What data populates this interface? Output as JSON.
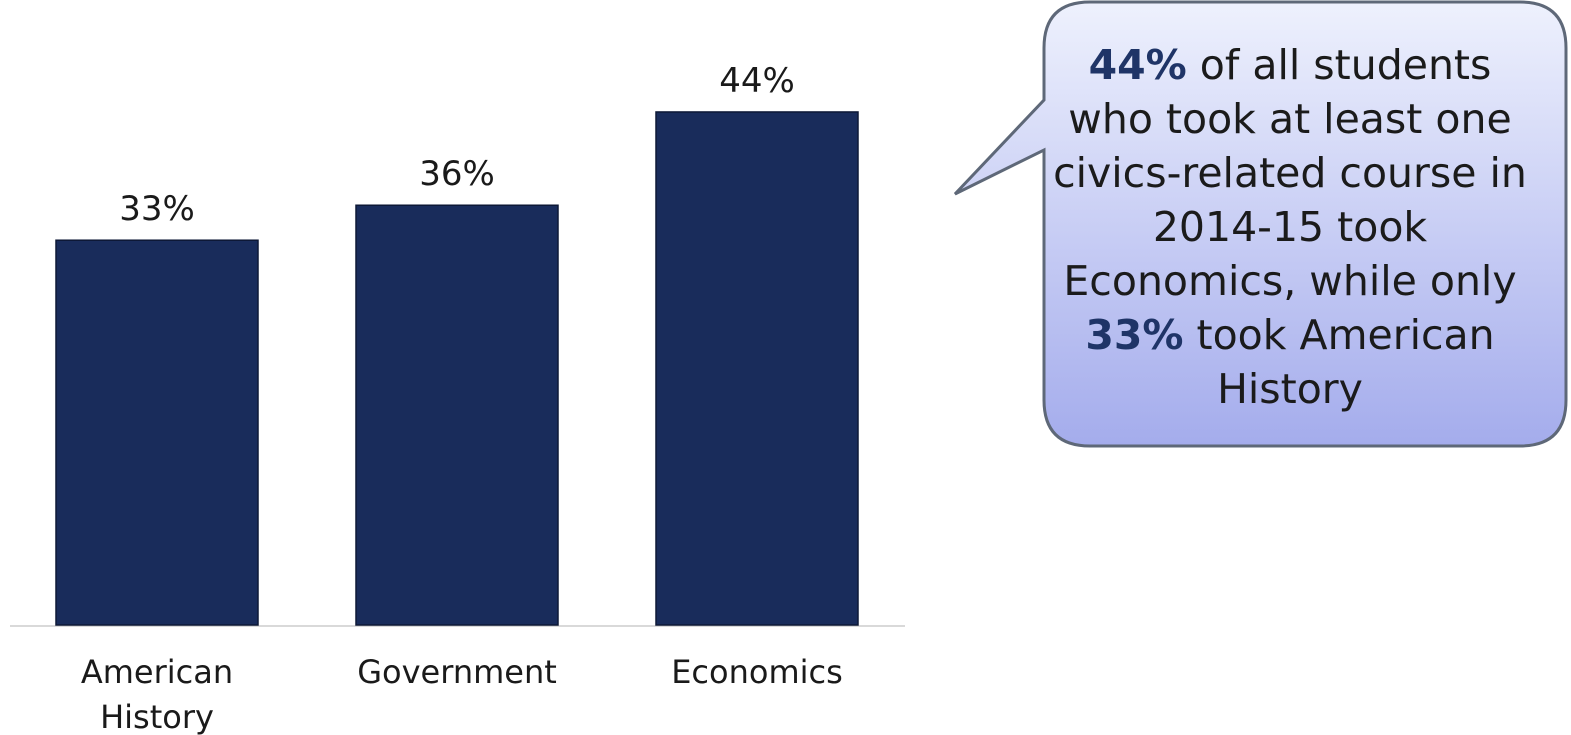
{
  "chart_data": {
    "type": "bar",
    "categories": [
      "American History",
      "Government",
      "Economics"
    ],
    "category_lines": [
      [
        "American",
        "History"
      ],
      [
        "Government"
      ],
      [
        "Economics"
      ]
    ],
    "values": [
      33,
      36,
      44
    ],
    "value_labels": [
      "33%",
      "36%",
      "44%"
    ],
    "unit": "%",
    "ylim": [
      0,
      50
    ],
    "grid": false,
    "legend": "none",
    "bar_color": "#192c5b"
  },
  "callout": {
    "highlight_1": "44%",
    "text_1": " of all students who took at least one civics-related course in 2014-15 took Economics, while only ",
    "highlight_2": "33%",
    "text_2": " took American History",
    "fill_top": "#eef1fd",
    "fill_bottom": "#a4acec",
    "border_color": "#5e6878",
    "highlight_color": "#1f3467"
  }
}
